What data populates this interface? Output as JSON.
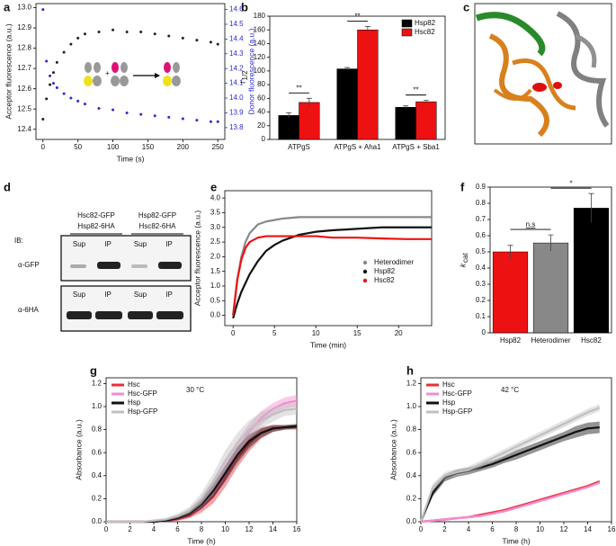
{
  "chart_data": [
    {
      "panel": "a",
      "type": "scatter",
      "xlabel": "Time (s)",
      "ylabel": "Acceptor fluorescence (a.u.)",
      "y2label": "Donor fluorescence (a.u.)",
      "x": [
        0,
        5,
        10,
        15,
        20,
        30,
        40,
        50,
        60,
        80,
        100,
        120,
        140,
        160,
        180,
        200,
        220,
        240,
        250
      ],
      "series": [
        {
          "color": "#222222",
          "values": [
            12.45,
            12.55,
            12.62,
            12.68,
            12.73,
            12.78,
            12.82,
            12.85,
            12.87,
            12.88,
            12.89,
            12.88,
            12.88,
            12.87,
            12.86,
            12.85,
            12.84,
            12.83,
            12.82
          ]
        },
        {
          "color": "#2a2ad8",
          "axis": "y2",
          "values": [
            14.6,
            14.25,
            14.15,
            14.1,
            14.07,
            14.03,
            14.0,
            13.98,
            13.96,
            13.93,
            13.92,
            13.9,
            13.89,
            13.88,
            13.87,
            13.86,
            13.85,
            13.84,
            13.84
          ]
        }
      ],
      "xlim": [
        -10,
        260
      ],
      "xticks": [
        0,
        50,
        100,
        150,
        200,
        250
      ],
      "ylim": [
        12.35,
        13.02
      ],
      "yticks": [
        12.4,
        12.5,
        12.6,
        12.7,
        12.8,
        12.9,
        {
          "value": 13,
          "label": "13.0"
        }
      ],
      "y2lim": [
        13.72,
        14.64
      ],
      "y2ticks": [
        13.8,
        13.9,
        {
          "value": 14,
          "label": "14.0"
        },
        14.1,
        14.2,
        14.3,
        14.4,
        14.5,
        14.6
      ]
    },
    {
      "panel": "b",
      "type": "bar",
      "ylabel": "t",
      "ylabel_sub": "1/2",
      "categories": [
        "ATPgS",
        "ATPgS + Aha1",
        "ATPgS + Sba1"
      ],
      "series": [
        {
          "name": "Hsp82",
          "color": "#000000",
          "values": [
            35,
            103,
            47
          ],
          "error": [
            4,
            2,
            2
          ]
        },
        {
          "name": "Hsc82",
          "color": "#ee1111",
          "values": [
            54,
            160,
            55
          ],
          "error": [
            6,
            5,
            2
          ]
        }
      ],
      "ylim": [
        0,
        180
      ],
      "yticks": [
        0,
        20,
        40,
        60,
        80,
        100,
        120,
        140,
        160,
        180
      ],
      "annotations": [
        "**",
        "**",
        "**"
      ],
      "legend": "upper right"
    },
    {
      "panel": "e",
      "type": "line",
      "xlabel": "Time (min)",
      "ylabel": "Acceptor fluorescence (a.u.)",
      "x": [
        0,
        0.5,
        1,
        1.5,
        2,
        3,
        4,
        5,
        6,
        8,
        10,
        12,
        15,
        18,
        21,
        24
      ],
      "series": [
        {
          "name": "Heterodimer",
          "color": "#888888",
          "values": [
            0,
            1.2,
            2.0,
            2.5,
            2.8,
            3.1,
            3.2,
            3.25,
            3.3,
            3.35,
            3.35,
            3.35,
            3.35,
            3.35,
            3.35,
            3.35
          ]
        },
        {
          "name": "Hsp82",
          "color": "#111111",
          "values": [
            -0.1,
            0.4,
            0.8,
            1.1,
            1.4,
            1.85,
            2.2,
            2.4,
            2.55,
            2.75,
            2.85,
            2.9,
            2.95,
            3.0,
            3.0,
            3.0
          ]
        },
        {
          "name": "Hsc82",
          "color": "#ee1111",
          "values": [
            0,
            1.2,
            1.9,
            2.3,
            2.5,
            2.65,
            2.7,
            2.7,
            2.7,
            2.7,
            2.7,
            2.65,
            2.65,
            2.62,
            2.6,
            2.6
          ]
        }
      ],
      "xlim": [
        -1,
        24
      ],
      "xticks": [
        0,
        5,
        10,
        15,
        20
      ],
      "ylim": [
        -0.35,
        4.25
      ],
      "yticks": [
        {
          "value": 0,
          "label": "0.0"
        },
        0.5,
        {
          "value": 1,
          "label": "1.0"
        },
        1.5,
        {
          "value": 2,
          "label": "2.0"
        },
        2.5,
        {
          "value": 3,
          "label": "3.0"
        },
        3.5,
        {
          "value": 4,
          "label": "4.0"
        }
      ],
      "legend": "lower right"
    },
    {
      "panel": "f",
      "type": "bar",
      "ylabel": "k",
      "ylabel_sub": "cat",
      "categories": [
        "Hsp82",
        "Heterodimer",
        "Hsc82"
      ],
      "values": [
        0.5,
        0.555,
        0.77
      ],
      "error": [
        0.04,
        0.05,
        0.09
      ],
      "colors": [
        "#ee1111",
        "#888888",
        "#000000"
      ],
      "ylim": [
        0,
        0.9
      ],
      "yticks": [
        0,
        0.1,
        0.2,
        0.3,
        0.4,
        0.5,
        0.6,
        0.7,
        0.8,
        0.9
      ],
      "annotations": [
        "n.s",
        "*"
      ]
    },
    {
      "panel": "g",
      "type": "line",
      "xlabel": "Time (h)",
      "ylabel": "Absorbance (a.u.)",
      "x": [
        0,
        1,
        2,
        3,
        4,
        5,
        6,
        7,
        8,
        9,
        10,
        11,
        12,
        13,
        14,
        15,
        16
      ],
      "series": [
        {
          "name": "Hsc",
          "color": "#e8303a",
          "values": [
            0,
            0,
            0,
            0,
            0,
            0.01,
            0.02,
            0.05,
            0.12,
            0.22,
            0.38,
            0.55,
            0.68,
            0.77,
            0.81,
            0.82,
            0.82
          ],
          "error": [
            0,
            0,
            0,
            0,
            0,
            0.01,
            0.01,
            0.02,
            0.04,
            0.06,
            0.08,
            0.08,
            0.07,
            0.05,
            0.03,
            0.02,
            0.02
          ]
        },
        {
          "name": "Hsc-GFP",
          "color": "#f08ccf",
          "values": [
            0,
            0,
            0,
            0,
            0,
            0.01,
            0.03,
            0.07,
            0.15,
            0.28,
            0.45,
            0.62,
            0.78,
            0.9,
            0.98,
            1.03,
            1.05
          ],
          "error": [
            0,
            0,
            0,
            0,
            0,
            0.01,
            0.01,
            0.02,
            0.04,
            0.06,
            0.08,
            0.08,
            0.07,
            0.06,
            0.05,
            0.05,
            0.05
          ]
        },
        {
          "name": "Hsp",
          "color": "#111111",
          "values": [
            0,
            0,
            0,
            0,
            0,
            0.01,
            0.03,
            0.07,
            0.15,
            0.27,
            0.42,
            0.58,
            0.7,
            0.77,
            0.81,
            0.82,
            0.83
          ],
          "error": [
            0,
            0,
            0,
            0,
            0,
            0.01,
            0.01,
            0.02,
            0.04,
            0.06,
            0.07,
            0.07,
            0.06,
            0.04,
            0.03,
            0.02,
            0.02
          ]
        },
        {
          "name": "Hsp-GFP",
          "color": "#c0c0c0",
          "values": [
            0,
            0,
            0,
            0,
            0.01,
            0.02,
            0.05,
            0.1,
            0.2,
            0.35,
            0.53,
            0.68,
            0.8,
            0.88,
            0.93,
            0.97,
            0.98
          ],
          "error": [
            0,
            0,
            0,
            0,
            0.01,
            0.01,
            0.02,
            0.03,
            0.05,
            0.07,
            0.09,
            0.09,
            0.08,
            0.07,
            0.06,
            0.05,
            0.05
          ]
        }
      ],
      "xlim": [
        0,
        16
      ],
      "xticks": [
        0,
        2,
        4,
        6,
        8,
        10,
        12,
        14,
        16
      ],
      "ylim": [
        0,
        1.25
      ],
      "yticks": [
        {
          "value": 0,
          "label": "0.0"
        },
        0.2,
        0.4,
        0.6,
        0.8,
        {
          "value": 1,
          "label": "1.0"
        },
        1.2
      ],
      "annotations": [
        "30 °C"
      ],
      "legend": "upper left"
    },
    {
      "panel": "h",
      "type": "line",
      "xlabel": "Time (h)",
      "ylabel": "Absorbance (a.u.)",
      "x": [
        0,
        1,
        2,
        3,
        4,
        5,
        6,
        7,
        8,
        9,
        10,
        11,
        12,
        13,
        14,
        15
      ],
      "series": [
        {
          "name": "Hsc",
          "color": "#e8303a",
          "values": [
            0,
            0.01,
            0.02,
            0.03,
            0.04,
            0.06,
            0.08,
            0.1,
            0.13,
            0.16,
            0.19,
            0.22,
            0.25,
            0.28,
            0.31,
            0.35
          ],
          "error": [
            0.01,
            0.01,
            0.01,
            0.01,
            0.01,
            0.01,
            0.01,
            0.01,
            0.01,
            0.01,
            0.01,
            0.01,
            0.01,
            0.01,
            0.01,
            0.01
          ]
        },
        {
          "name": "Hsc-GFP",
          "color": "#f08ccf",
          "values": [
            0,
            0.01,
            0.02,
            0.03,
            0.04,
            0.05,
            0.07,
            0.09,
            0.12,
            0.15,
            0.18,
            0.21,
            0.24,
            0.27,
            0.3,
            0.34
          ],
          "error": [
            0.01,
            0.01,
            0.01,
            0.01,
            0.01,
            0.01,
            0.01,
            0.01,
            0.01,
            0.01,
            0.01,
            0.01,
            0.01,
            0.01,
            0.01,
            0.01
          ]
        },
        {
          "name": "Hsp",
          "color": "#111111",
          "values": [
            0,
            0.25,
            0.38,
            0.42,
            0.44,
            0.47,
            0.5,
            0.54,
            0.58,
            0.62,
            0.66,
            0.7,
            0.74,
            0.78,
            0.81,
            0.82
          ],
          "error": [
            0,
            0.03,
            0.03,
            0.03,
            0.03,
            0.03,
            0.03,
            0.03,
            0.04,
            0.04,
            0.04,
            0.04,
            0.04,
            0.05,
            0.05,
            0.05
          ]
        },
        {
          "name": "Hsp-GFP",
          "color": "#c0c0c0",
          "values": [
            0,
            0.3,
            0.4,
            0.43,
            0.45,
            0.5,
            0.55,
            0.6,
            0.65,
            0.7,
            0.75,
            0.8,
            0.85,
            0.9,
            0.95,
            0.99
          ],
          "error": [
            0,
            0.03,
            0.03,
            0.03,
            0.03,
            0.03,
            0.03,
            0.03,
            0.03,
            0.03,
            0.03,
            0.03,
            0.03,
            0.03,
            0.03,
            0.03
          ]
        }
      ],
      "xlim": [
        0,
        16
      ],
      "xticks": [
        0,
        2,
        4,
        6,
        8,
        10,
        12,
        14,
        16
      ],
      "ylim": [
        0,
        1.25
      ],
      "yticks": [
        {
          "value": 0,
          "label": "0.0"
        },
        0.2,
        0.4,
        0.6,
        0.8,
        {
          "value": 1,
          "label": "1.0"
        },
        1.2
      ],
      "annotations": [
        "42 °C"
      ],
      "legend": "upper left"
    }
  ],
  "image": {
    "panel": "c"
  },
  "blot": {
    "panel": "d",
    "ib": "IB:",
    "groups": [
      [
        "Hsc82-GFP",
        "Hsp82-6HA"
      ],
      [
        "Hsp82-GFP",
        "Hsc82-6HA"
      ]
    ],
    "rows": [
      {
        "antibody": "α-GFP",
        "lanes": [
          "Sup",
          "IP",
          "Sup",
          "IP"
        ]
      },
      {
        "antibody": "α-6HA",
        "lanes": [
          "Sup",
          "IP",
          "Sup",
          "IP"
        ]
      }
    ]
  }
}
